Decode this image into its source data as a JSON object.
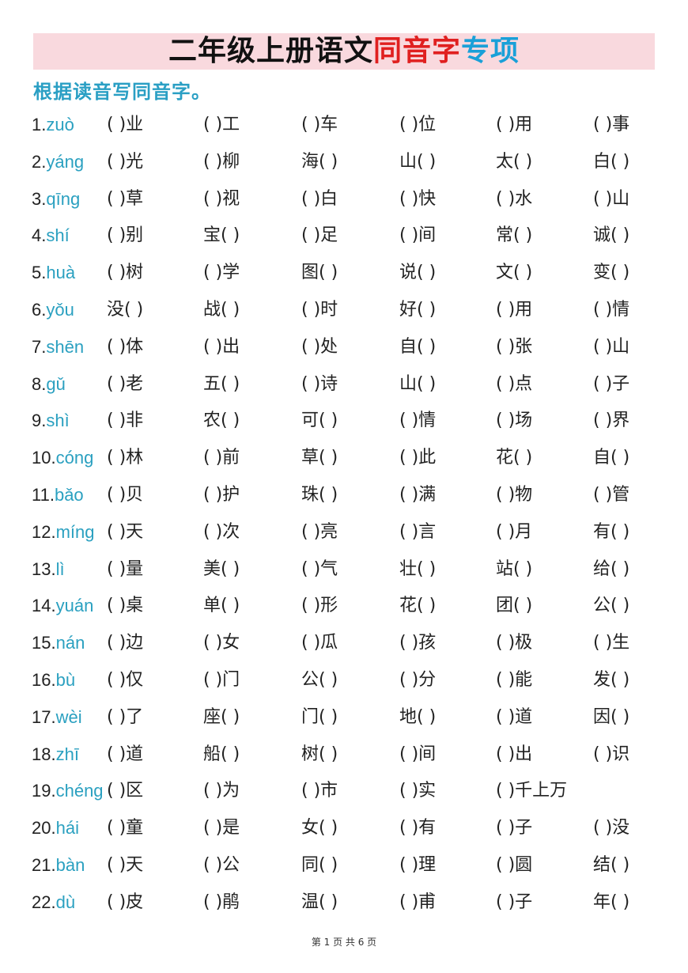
{
  "title": {
    "part_black": "二年级上册语文",
    "part_red": "同音字",
    "part_blue": "专项"
  },
  "instruction": "根据读音写同音字。",
  "colors": {
    "title_band": "#f9d9de",
    "red": "#e02020",
    "blue": "#1aa0d8",
    "pinyin": "#2aa0c0"
  },
  "rows": [
    {
      "num": "1.",
      "pinyin": "zuò",
      "cells": [
        "( )业",
        "( )工",
        "( )车",
        "( )位",
        "( )用",
        "( )事"
      ]
    },
    {
      "num": "2.",
      "pinyin": "yáng",
      "cells": [
        "( )光",
        "( )柳",
        "海( )",
        "山( )",
        "太( )",
        "白( )"
      ]
    },
    {
      "num": "3.",
      "pinyin": "qīng",
      "cells": [
        "( )草",
        "( )视",
        "( )白",
        "( )快",
        "( )水",
        "( )山"
      ]
    },
    {
      "num": "4.",
      "pinyin": "shí",
      "cells": [
        "( )别",
        "宝( )",
        "( )足",
        "( )间",
        "常( )",
        "诚( )"
      ]
    },
    {
      "num": "5.",
      "pinyin": "huà",
      "cells": [
        "( )树",
        "( )学",
        "图( )",
        "说( )",
        "文( )",
        "变( )"
      ]
    },
    {
      "num": "6.",
      "pinyin": "yǒu",
      "cells": [
        "没( )",
        "战( )",
        "( )时",
        "好( )",
        "( )用",
        "( )情"
      ]
    },
    {
      "num": "7.",
      "pinyin": "shēn",
      "cells": [
        "( )体",
        "( )出",
        "( )处",
        "自( )",
        "( )张",
        "( )山"
      ]
    },
    {
      "num": "8.",
      "pinyin": "gǔ",
      "cells": [
        "( )老",
        "五( )",
        "( )诗",
        "山( )",
        "( )点",
        "( )子"
      ]
    },
    {
      "num": "9.",
      "pinyin": "shì",
      "cells": [
        "( )非",
        "农( )",
        "可( )",
        "( )情",
        "( )场",
        "( )界"
      ]
    },
    {
      "num": "10.",
      "pinyin": "cóng",
      "cells": [
        "( )林",
        "( )前",
        "草( )",
        "( )此",
        "花( )",
        "自( )"
      ]
    },
    {
      "num": "11.",
      "pinyin": "bǎo",
      "cells": [
        "( )贝",
        "( )护",
        "珠( )",
        "( )满",
        "( )物",
        "( )管"
      ]
    },
    {
      "num": "12.",
      "pinyin": "míng",
      "cells": [
        "( )天",
        "( )次",
        "( )亮",
        "( )言",
        "( )月",
        "有( )"
      ]
    },
    {
      "num": "13.",
      "pinyin": "lì",
      "cells": [
        "( )量",
        "美( )",
        "( )气",
        "壮( )",
        "站( )",
        "给( )"
      ]
    },
    {
      "num": "14.",
      "pinyin": "yuán",
      "cells": [
        "( )桌",
        "单( )",
        "( )形",
        "花( )",
        "团( )",
        "公( )"
      ]
    },
    {
      "num": "15.",
      "pinyin": "nán",
      "cells": [
        "( )边",
        "( )女",
        "( )瓜",
        "( )孩",
        "( )极",
        "( )生"
      ]
    },
    {
      "num": "16.",
      "pinyin": "bù",
      "cells": [
        "( )仅",
        "( )门",
        "公( )",
        "( )分",
        "( )能",
        "发( )"
      ]
    },
    {
      "num": "17.",
      "pinyin": "wèi",
      "cells": [
        "( )了",
        "座( )",
        "门( )",
        "地( )",
        "( )道",
        "因( )"
      ]
    },
    {
      "num": "18.",
      "pinyin": "zhī",
      "cells": [
        "( )道",
        "船( )",
        "树( )",
        "( )间",
        "( )出",
        "( )识"
      ]
    },
    {
      "num": "19.",
      "pinyin": "chéng",
      "cells": [
        "( )区",
        "( )为",
        "( )市",
        "( )实",
        "( )千上万"
      ]
    },
    {
      "num": "20.",
      "pinyin": "hái",
      "cells": [
        "( )童",
        "( )是",
        "女( )",
        "( )有",
        "( )子",
        "( )没"
      ]
    },
    {
      "num": "21.",
      "pinyin": "bàn",
      "cells": [
        "( )天",
        "( )公",
        "同( )",
        "( )理",
        "( )圆",
        "结( )"
      ]
    },
    {
      "num": "22.",
      "pinyin": "dù",
      "cells": [
        "( )皮",
        "( )鹃",
        "温( )",
        "( )甫",
        "( )子",
        "年( )"
      ]
    }
  ],
  "footer": "第 1 页 共 6 页"
}
